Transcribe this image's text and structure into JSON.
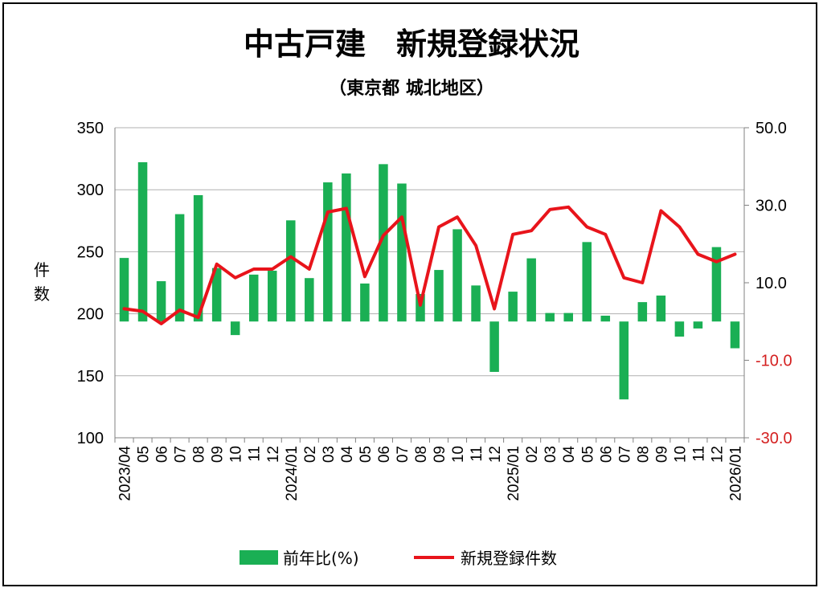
{
  "chart_data": {
    "type": "bar+line",
    "title": "中古戸建　新規登録状況",
    "subtitle": "（東京都 城北地区）",
    "ylabel_left": "件数",
    "ylim_left": [
      100,
      350
    ],
    "yticks_left": [
      "350",
      "300",
      "250",
      "200",
      "150",
      "100"
    ],
    "ylim_right": [
      -30,
      50
    ],
    "yticks_right": [
      "50.0",
      "30.0",
      "10.0",
      "-10.0",
      "-30.0"
    ],
    "x_labels": [
      "2023/04",
      "05",
      "06",
      "07",
      "08",
      "09",
      "10",
      "11",
      "12",
      "2024/01",
      "02",
      "03",
      "04",
      "05",
      "06",
      "07",
      "08",
      "09",
      "10",
      "11",
      "12",
      "2025/01",
      "02",
      "03",
      "04",
      "05",
      "06",
      "07",
      "08",
      "09",
      "10",
      "11",
      "12",
      "2026/01"
    ],
    "grid": true,
    "legend_position": "bottom",
    "colors": {
      "bar": "#1aaf54",
      "line": "#e8141b",
      "right_axis_negative": "#d42020"
    },
    "series": [
      {
        "name": "前年比(%)",
        "type": "bar",
        "axis": "right",
        "values": [
          16.4,
          41.1,
          10.4,
          27.7,
          32.6,
          13.8,
          -3.5,
          12.1,
          13.1,
          26.1,
          11.2,
          35.9,
          38.2,
          9.8,
          40.6,
          35.6,
          7.1,
          13.3,
          23.8,
          9.3,
          -13.0,
          7.7,
          16.3,
          2.2,
          2.2,
          20.5,
          1.5,
          -20.1,
          5.0,
          6.7,
          -3.9,
          -1.8,
          19.2,
          -6.9
        ]
      },
      {
        "name": "新規登録件数",
        "type": "line",
        "axis": "left",
        "values": [
          204,
          202,
          192,
          203,
          197,
          240,
          229,
          236,
          236,
          246,
          236,
          282,
          285,
          230,
          263,
          278,
          207,
          270,
          278,
          255,
          204,
          264,
          267,
          284,
          286,
          270,
          264,
          229,
          225,
          283,
          270,
          248,
          242,
          248
        ]
      }
    ]
  }
}
